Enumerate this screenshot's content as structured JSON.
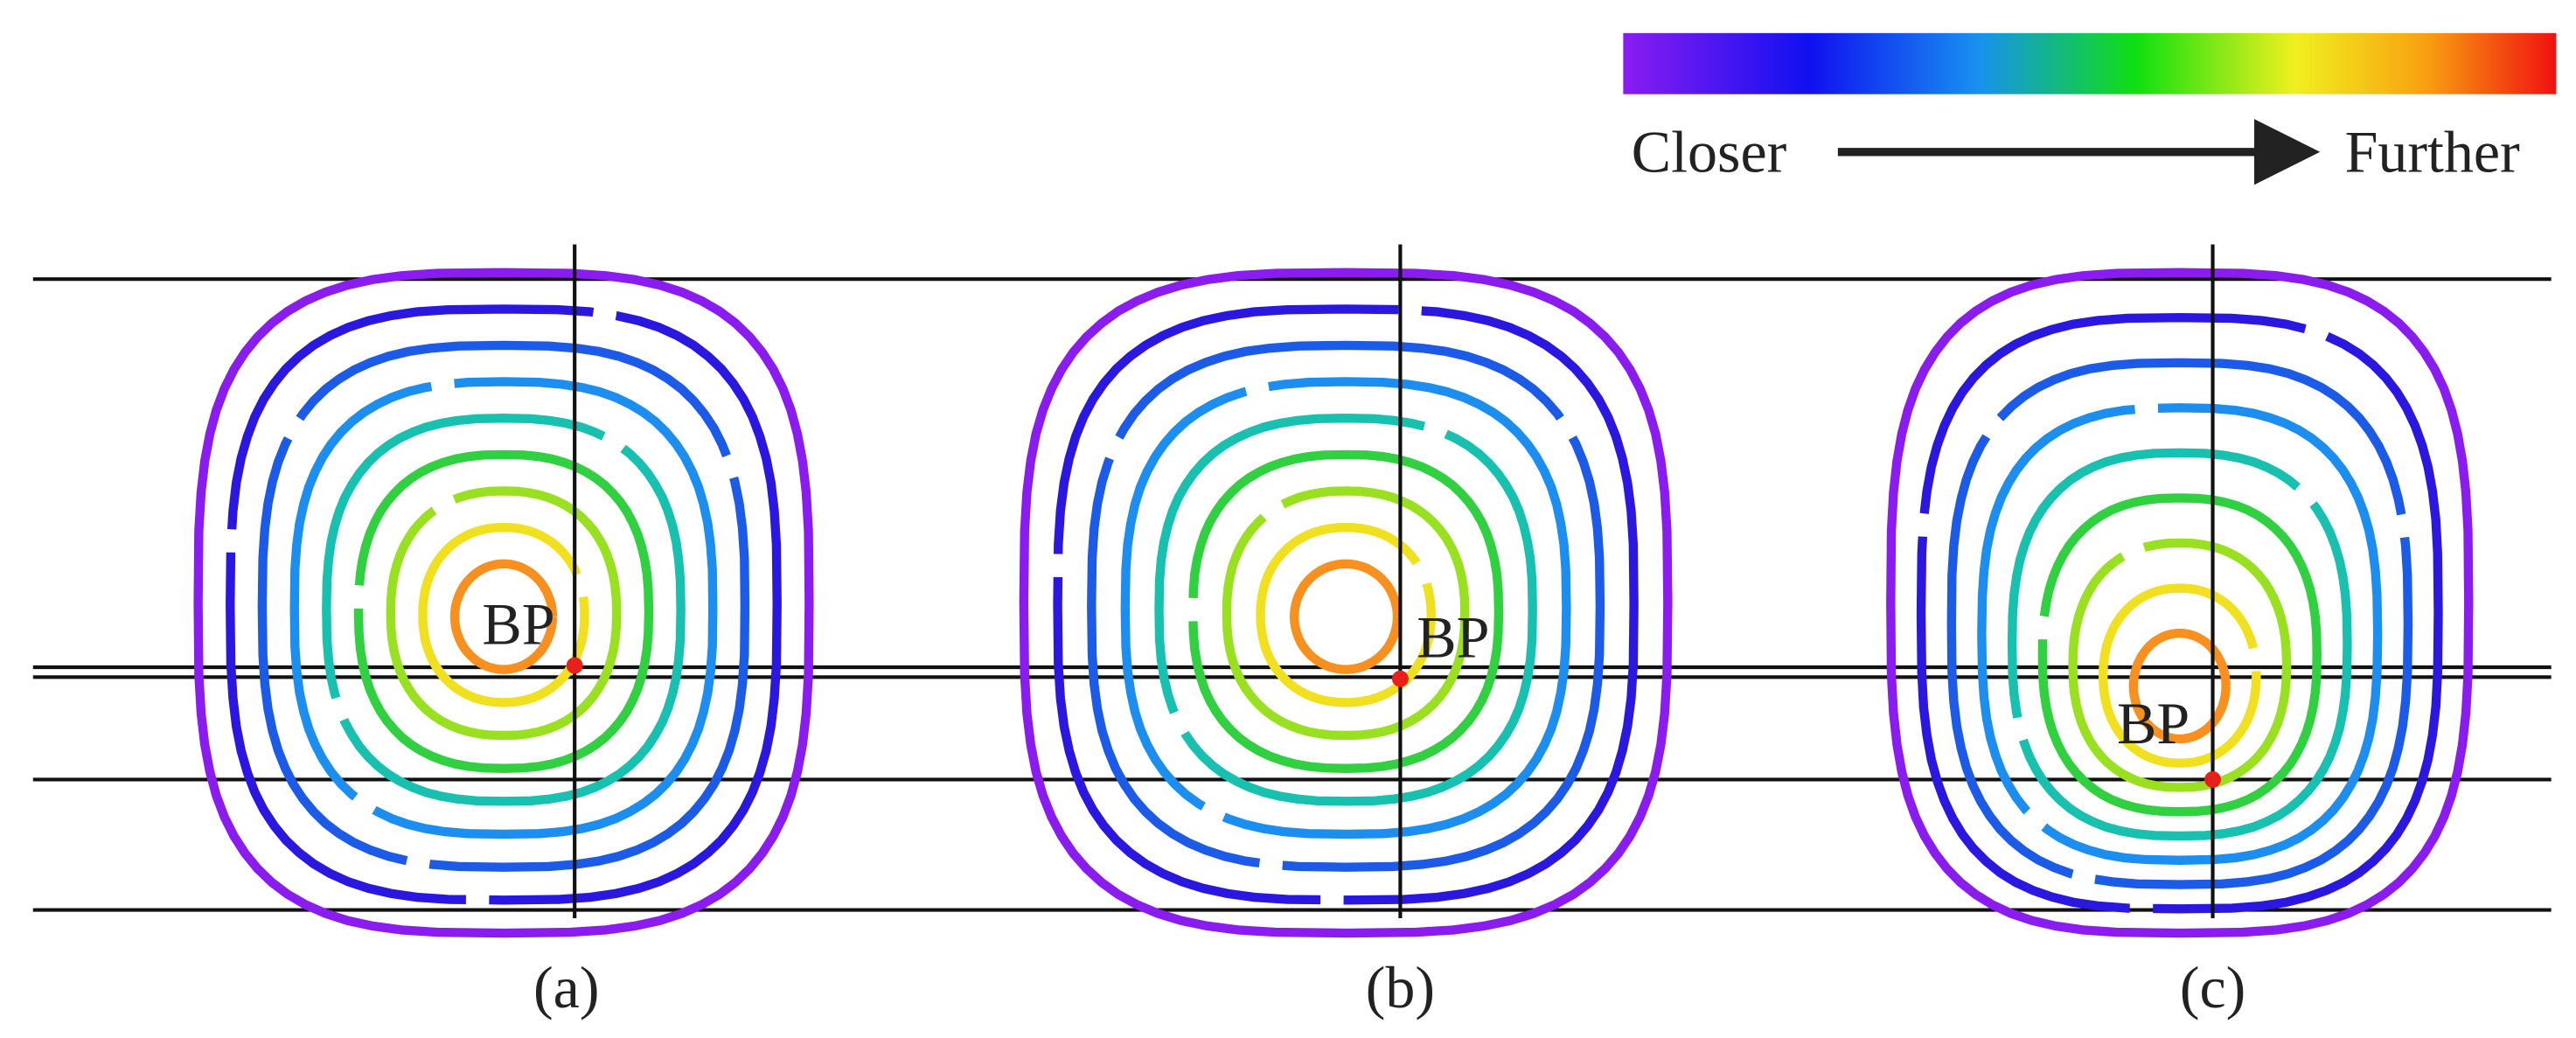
{
  "legend": {
    "start_label": "Closer",
    "end_label": "Further"
  },
  "panels": [
    {
      "label": "(a)",
      "point_label": "BP"
    },
    {
      "label": "(b)",
      "point_label": "BP"
    },
    {
      "label": "(c)",
      "point_label": "BP"
    }
  ]
}
